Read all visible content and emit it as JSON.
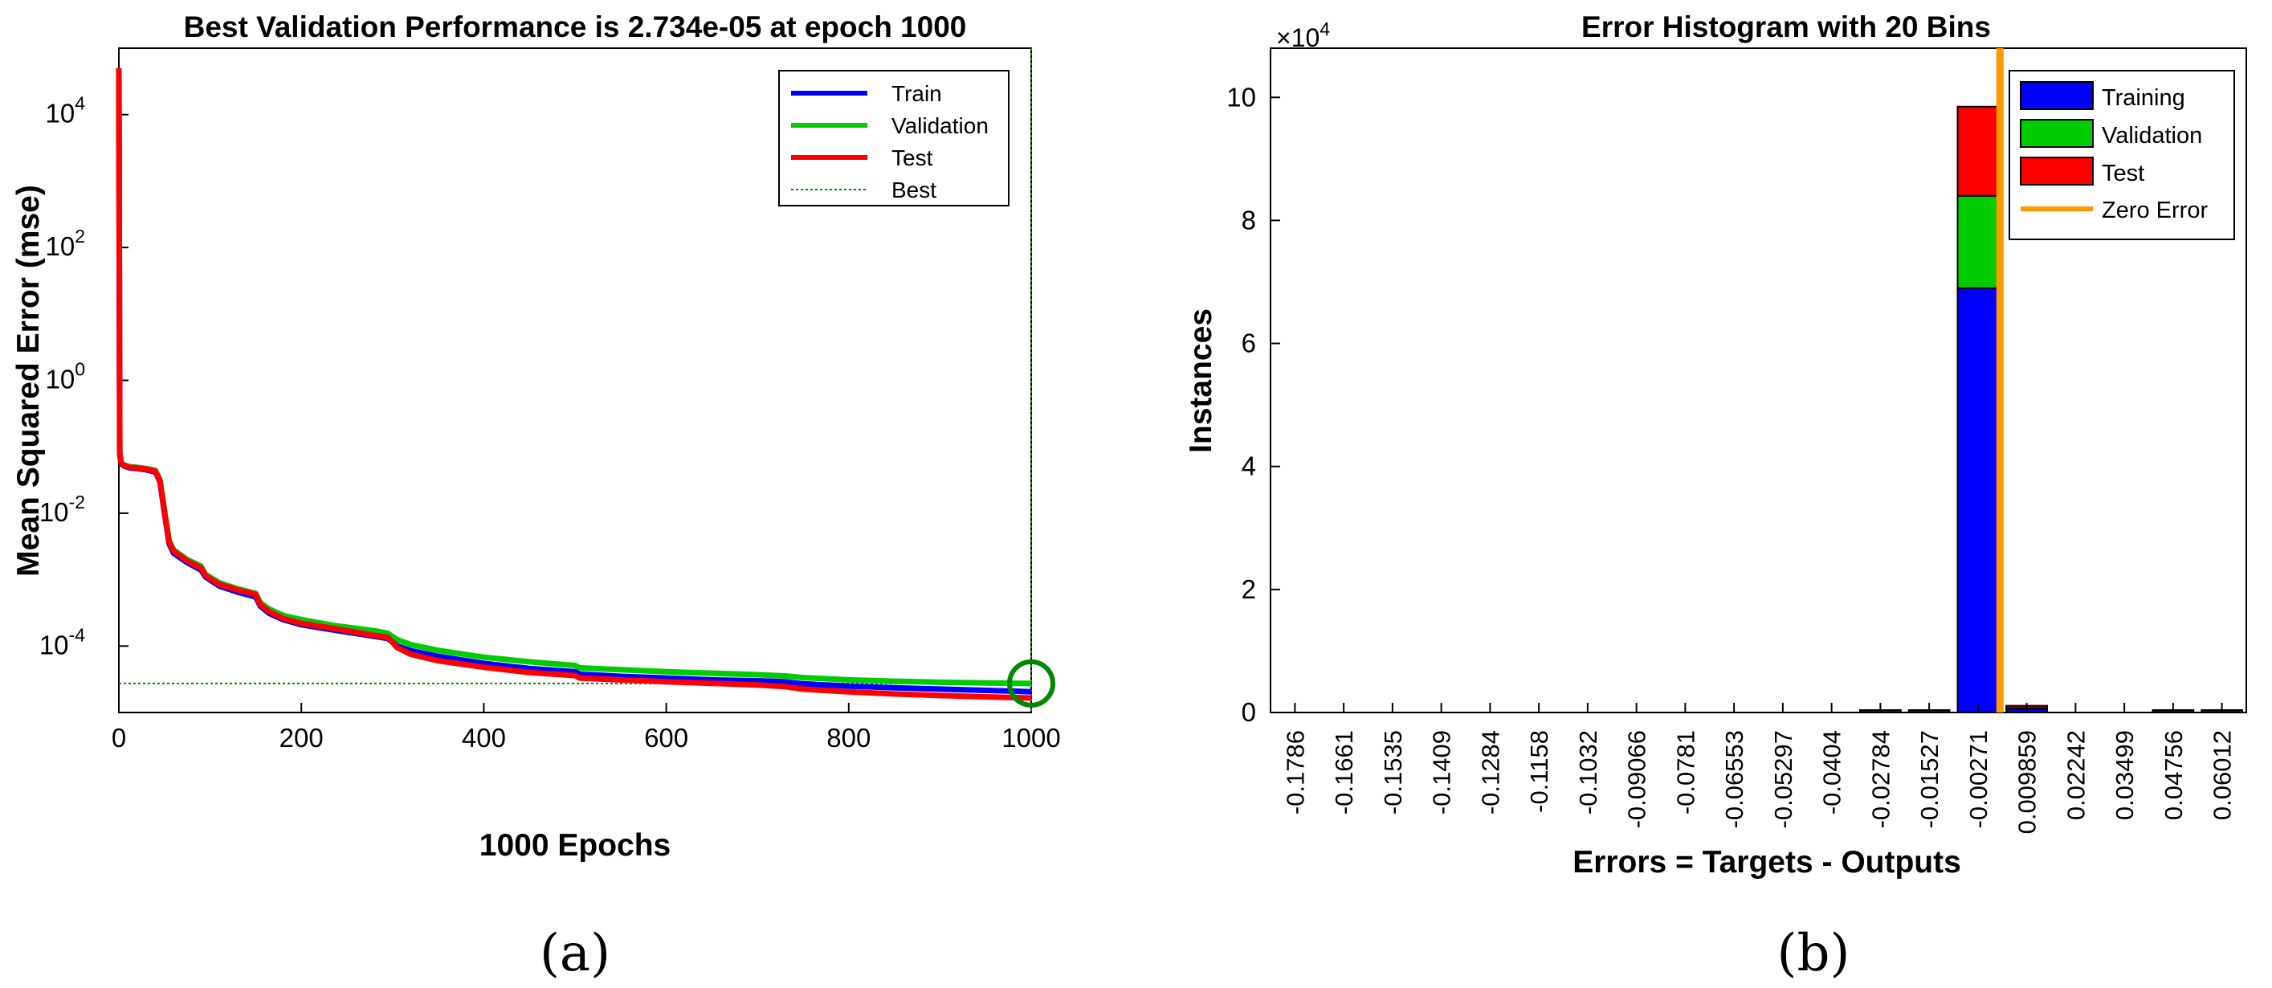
{
  "chart_data": [
    {
      "type": "line",
      "title": "Best Validation Performance is 2.734e-05 at epoch 1000",
      "xlabel": "1000 Epochs",
      "ylabel": "Mean Squared Error  (mse)",
      "yscale": "log",
      "xlim": [
        0,
        1000
      ],
      "ylim": [
        1e-05,
        100000.0
      ],
      "xticks": [
        0,
        200,
        400,
        600,
        800,
        1000
      ],
      "yticks": [
        {
          "value": 0.0001,
          "base": "10",
          "exp": "-4"
        },
        {
          "value": 0.01,
          "base": "10",
          "exp": "-2"
        },
        {
          "value": 1,
          "base": "10",
          "exp": "0"
        },
        {
          "value": 100,
          "base": "10",
          "exp": "2"
        },
        {
          "value": 10000,
          "base": "10",
          "exp": "4"
        }
      ],
      "legend_position": "top-right",
      "best": {
        "epoch": 1000,
        "value": 2.734e-05,
        "label": "Best"
      },
      "series": [
        {
          "name": "Train",
          "color": "#0000ff",
          "x": [
            0,
            1,
            2,
            3,
            5,
            8,
            12,
            20,
            30,
            40,
            45,
            50,
            55,
            60,
            75,
            90,
            95,
            110,
            130,
            150,
            155,
            165,
            180,
            200,
            240,
            280,
            295,
            305,
            320,
            350,
            400,
            450,
            500,
            505,
            550,
            600,
            650,
            700,
            730,
            750,
            800,
            850,
            900,
            950,
            1000
          ],
          "y": [
            50000,
            0.08,
            0.06,
            0.055,
            0.052,
            0.05,
            0.048,
            0.047,
            0.045,
            0.042,
            0.03,
            0.01,
            0.0035,
            0.0025,
            0.0018,
            0.0014,
            0.0011,
            0.0008,
            0.00065,
            0.00055,
            0.0004,
            0.00031,
            0.00025,
            0.00021,
            0.00017,
            0.00014,
            0.00013,
            0.0001,
            8.5e-05,
            7e-05,
            5.5e-05,
            4.6e-05,
            4.1e-05,
            3.8e-05,
            3.5e-05,
            3.3e-05,
            3.1e-05,
            3e-05,
            2.9e-05,
            2.7e-05,
            2.5e-05,
            2.35e-05,
            2.25e-05,
            2.15e-05,
            2.05e-05
          ]
        },
        {
          "name": "Validation",
          "color": "#00cc00",
          "x": [
            0,
            1,
            2,
            3,
            5,
            8,
            12,
            20,
            30,
            40,
            45,
            50,
            55,
            60,
            75,
            90,
            95,
            110,
            130,
            150,
            155,
            165,
            180,
            200,
            240,
            280,
            295,
            305,
            320,
            350,
            400,
            450,
            500,
            505,
            550,
            600,
            650,
            700,
            730,
            750,
            800,
            850,
            900,
            950,
            1000
          ],
          "y": [
            50000,
            0.08,
            0.062,
            0.057,
            0.054,
            0.052,
            0.05,
            0.049,
            0.047,
            0.044,
            0.032,
            0.011,
            0.0039,
            0.0028,
            0.002,
            0.0016,
            0.0012,
            0.0009,
            0.00073,
            0.00062,
            0.00045,
            0.00036,
            0.00029,
            0.00025,
            0.0002,
            0.00017,
            0.000155,
            0.000125,
            0.000105,
            8.6e-05,
            6.8e-05,
            5.8e-05,
            5.1e-05,
            4.7e-05,
            4.4e-05,
            4.1e-05,
            3.9e-05,
            3.7e-05,
            3.55e-05,
            3.35e-05,
            3.1e-05,
            2.95e-05,
            2.85e-05,
            2.78e-05,
            2.734e-05
          ]
        },
        {
          "name": "Test",
          "color": "#ff0000",
          "x": [
            0,
            1,
            2,
            3,
            5,
            8,
            12,
            20,
            30,
            40,
            45,
            50,
            55,
            60,
            75,
            90,
            95,
            110,
            130,
            150,
            155,
            165,
            180,
            200,
            240,
            280,
            295,
            305,
            320,
            350,
            400,
            450,
            500,
            505,
            550,
            600,
            650,
            700,
            730,
            750,
            800,
            850,
            900,
            950,
            1000
          ],
          "y": [
            50000,
            0.08,
            0.061,
            0.056,
            0.053,
            0.051,
            0.049,
            0.048,
            0.046,
            0.043,
            0.031,
            0.0105,
            0.0037,
            0.0027,
            0.0019,
            0.0015,
            0.00115,
            0.00085,
            0.0007,
            0.0006,
            0.00042,
            0.00033,
            0.00026,
            0.00022,
            0.00018,
            0.000145,
            0.000135,
            9.5e-05,
            7.5e-05,
            6e-05,
            4.8e-05,
            4e-05,
            3.6e-05,
            3.3e-05,
            3.1e-05,
            2.9e-05,
            2.75e-05,
            2.6e-05,
            2.45e-05,
            2.25e-05,
            2.05e-05,
            1.9e-05,
            1.8e-05,
            1.72e-05,
            1.65e-05
          ]
        }
      ],
      "caption": "(a)"
    },
    {
      "type": "bar",
      "stacked": true,
      "title": "Error Histogram with 20 Bins",
      "xlabel": "Errors = Targets - Outputs",
      "ylabel": "Instances",
      "y_multiplier": {
        "base": "×10",
        "exp": "4"
      },
      "ylim": [
        0,
        10.8
      ],
      "yticks": [
        0,
        2,
        4,
        6,
        8,
        10
      ],
      "legend_position": "top-right",
      "categories": [
        "-0.1786",
        "-0.1661",
        "-0.1535",
        "-0.1409",
        "-0.1284",
        "-0.1158",
        "-0.1032",
        "-0.09066",
        "-0.0781",
        "-0.06553",
        "-0.05297",
        "-0.0404",
        "-0.02784",
        "-0.01527",
        "-0.00271",
        "0.009859",
        "0.02242",
        "0.03499",
        "0.04756",
        "0.06012"
      ],
      "series": [
        {
          "name": "Training",
          "color": "#0000ff",
          "values": [
            0,
            0,
            0,
            0,
            0,
            0,
            0,
            0,
            0,
            0,
            0,
            0,
            0.02,
            0.01,
            6.9,
            0.06,
            0,
            0,
            0.01,
            0.01
          ]
        },
        {
          "name": "Validation",
          "color": "#00cc00",
          "values": [
            0,
            0,
            0,
            0,
            0,
            0,
            0,
            0,
            0,
            0,
            0,
            0,
            0,
            0,
            1.5,
            0.01,
            0,
            0,
            0,
            0
          ]
        },
        {
          "name": "Test",
          "color": "#ff0000",
          "values": [
            0,
            0,
            0,
            0,
            0,
            0,
            0,
            0,
            0,
            0,
            0,
            0,
            0,
            0,
            1.45,
            0.01,
            0,
            0,
            0,
            0
          ]
        }
      ],
      "zero_error": {
        "name": "Zero Error",
        "color": "#ff9900",
        "x_between": [
          "-0.00271",
          "0.009859"
        ]
      },
      "caption": "(b)"
    }
  ]
}
